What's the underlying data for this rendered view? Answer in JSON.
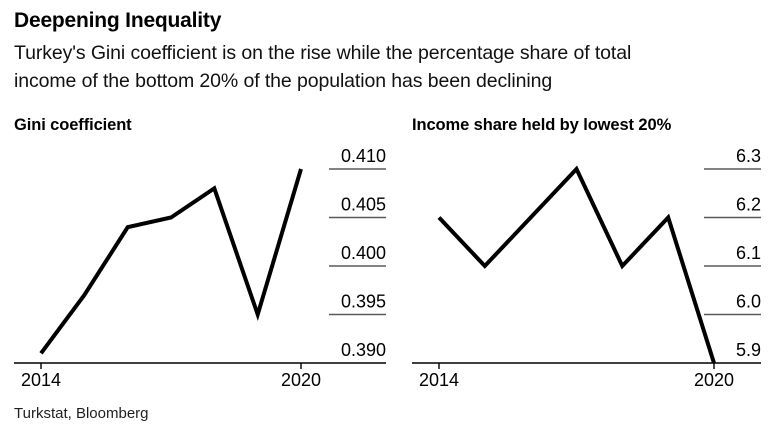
{
  "header": {
    "title": "Deepening Inequality",
    "subtitle_lines": [
      "Turkey's Gini coefficient is on the rise while the percentage share of total",
      "income of the bottom 20% of the population has been declining"
    ]
  },
  "source": "Turkstat, Bloomberg",
  "colors": {
    "data_line": "#000000",
    "axis": "#000000",
    "ytick_line": "#5a5a5a",
    "text": "#000000"
  },
  "chart_data": [
    {
      "type": "line",
      "title": "Gini coefficient",
      "x": [
        2014,
        2015,
        2016,
        2017,
        2018,
        2019,
        2020
      ],
      "values": [
        0.391,
        0.397,
        0.404,
        0.405,
        0.408,
        0.395,
        0.41
      ],
      "ylim": [
        0.39,
        0.412
      ],
      "yticks": [
        0.39,
        0.395,
        0.4,
        0.405,
        0.41
      ],
      "ytick_labels": [
        "0.390",
        "0.395",
        "0.400",
        "0.405",
        "0.410"
      ],
      "xticks": [
        2014,
        2020
      ],
      "xtick_labels": [
        "2014",
        "2020"
      ],
      "ylabel_position": "right",
      "grid": false,
      "legend": "none",
      "plot_inset_left": 27,
      "plot_inset_right": 90
    },
    {
      "type": "line",
      "title": "Income share held by lowest 20%",
      "x": [
        2014,
        2015,
        2016,
        2017,
        2018,
        2019,
        2020
      ],
      "values": [
        6.2,
        6.1,
        6.2,
        6.3,
        6.1,
        6.2,
        5.9
      ],
      "ylim": [
        5.9,
        6.34
      ],
      "yticks": [
        5.9,
        6.0,
        6.1,
        6.2,
        6.3
      ],
      "ytick_labels": [
        "5.9",
        "6.0",
        "6.1",
        "6.2",
        "6.3"
      ],
      "xticks": [
        2014,
        2020
      ],
      "xtick_labels": [
        "2014",
        "2020"
      ],
      "ylabel_position": "right",
      "grid": false,
      "legend": "none",
      "plot_inset_left": 27,
      "plot_inset_right": 52
    }
  ]
}
